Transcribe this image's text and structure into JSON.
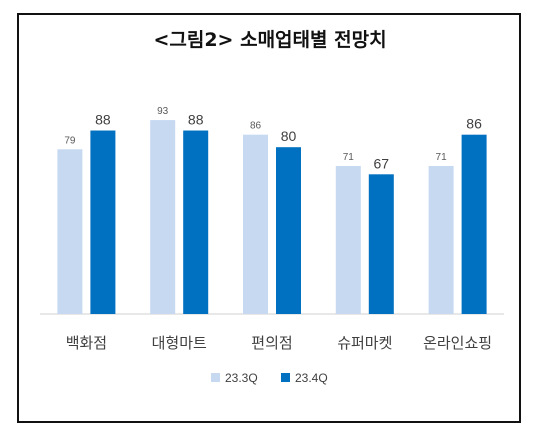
{
  "chart_data": {
    "type": "bar",
    "title": "<그림2> 소매업태별 전망치",
    "categories": [
      "백화점",
      "대형마트",
      "편의점",
      "슈퍼마켓",
      "온라인쇼핑"
    ],
    "series": [
      {
        "name": "23.3Q",
        "values": [
          79,
          93,
          86,
          71,
          71
        ],
        "color": "#C6D9F0"
      },
      {
        "name": "23.4Q",
        "values": [
          88,
          88,
          80,
          67,
          86
        ],
        "color": "#0070C0"
      }
    ],
    "ylim": [
      0,
      100
    ],
    "grid": false,
    "legend_position": "bottom"
  }
}
